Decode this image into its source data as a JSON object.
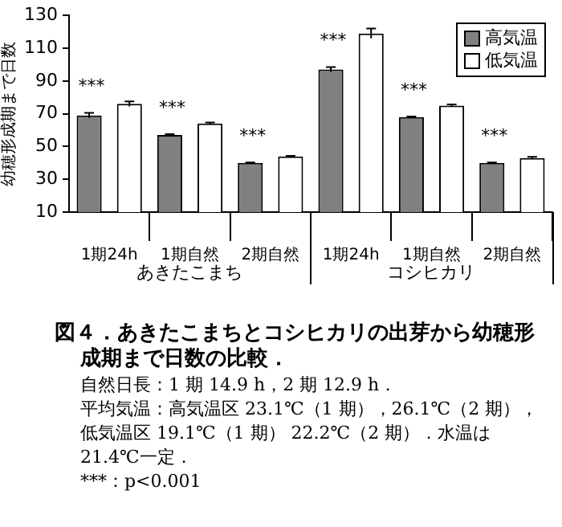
{
  "chart_data": {
    "type": "bar",
    "title": "図４．あきたこまちとコシヒカリの出芽から幼穂形成期まで日数の比較．",
    "ylabel": "幼穂形成期まで日数",
    "categories": [
      "1期24h",
      "1期自然",
      "2期自然",
      "1期24h",
      "1期自然",
      "2期自然"
    ],
    "series": [
      {
        "name": "高気温",
        "color": "#808080",
        "values": [
          69,
          57,
          40,
          97,
          68,
          40
        ],
        "errors": [
          1.5,
          0.6,
          0.3,
          1.5,
          0.3,
          0.3
        ]
      },
      {
        "name": "低気温",
        "color": "#ffffff",
        "values": [
          76,
          64,
          44,
          119,
          75,
          43
        ],
        "errors": [
          1.5,
          0.6,
          0.3,
          3,
          0.7,
          0.7
        ]
      }
    ],
    "ylim": [
      10,
      130
    ],
    "yticks": [
      10,
      30,
      50,
      70,
      90,
      110,
      130
    ],
    "grid": false,
    "legend": "top right",
    "annotations": [
      "あきたこまち",
      "コシヒカリ",
      "***",
      "***",
      "***",
      "***",
      "***",
      "***",
      "自然日長：1 期 14.9 h，2 期 12.9 h．",
      "平均気温：高気温区 23.1℃（1 期），26.1℃（2 期），低気温区 19.1℃（1 期） 22.2℃（2 期）．水温は 21.4℃一定．",
      "***：p<0.001"
    ]
  }
}
